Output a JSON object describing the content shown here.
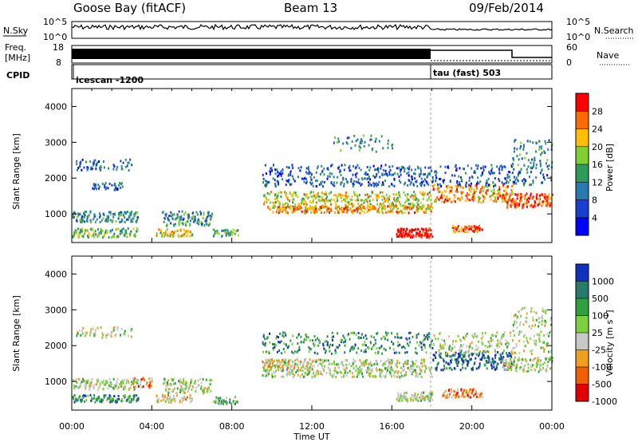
{
  "header": {
    "station": "Goose Bay (fitACF)",
    "beam": "Beam 13",
    "date": "09/Feb/2014"
  },
  "summary_panels": {
    "nsky_label": "N.Sky",
    "nsky_ticks": [
      "10^5",
      "10^0"
    ],
    "nsearch_label": "N.Search",
    "nsearch_ticks": [
      "10^5",
      "10^0"
    ],
    "freq_label_1": "Freq.",
    "freq_label_2": "[MHz]",
    "freq_ticks": [
      "18",
      "8"
    ],
    "nave_label": "Nave",
    "nave_ticks": [
      "60",
      "0"
    ],
    "cpid_label": "CPID",
    "cpid_mode_1": "icescan -1200",
    "cpid_mode_2": "tau (fast) 503"
  },
  "chart_data": [
    {
      "type": "heatmap",
      "title": "Power",
      "ylabel": "Slant Range [km]",
      "ylim": [
        200,
        4500
      ],
      "yticks": [
        "4000",
        "3000",
        "2000",
        "1000"
      ],
      "colorbar_label": "Power [dB]",
      "colorbar_ticks": [
        "28",
        "24",
        "20",
        "16",
        "12",
        "8",
        "4"
      ],
      "colorbar_colors": [
        "#ff0000",
        "#ff6a00",
        "#ffbf00",
        "#80d030",
        "#2f9a5a",
        "#2a7ab0",
        "#1a3fd0",
        "#0000ff"
      ]
    },
    {
      "type": "heatmap",
      "title": "Velocity",
      "ylabel": "Slant Range [km]",
      "ylim": [
        200,
        4500
      ],
      "yticks": [
        "4000",
        "3000",
        "2000",
        "1000"
      ],
      "colorbar_label": "Velocity [m s",
      "colorbar_label_sup": "-1",
      "colorbar_label_end": "]",
      "colorbar_ticks": [
        "1000",
        "500",
        "100",
        "25",
        "-25",
        "-100",
        "-500",
        "-1000"
      ],
      "colorbar_colors": [
        "#1030c0",
        "#2a7a6a",
        "#30a040",
        "#7fd040",
        "#c8c8c8",
        "#f0a020",
        "#f06000",
        "#e00000"
      ],
      "xlabel": "Time UT",
      "xticks": [
        "00:00",
        "04:00",
        "08:00",
        "12:00",
        "16:00",
        "20:00",
        "00:00"
      ]
    }
  ]
}
